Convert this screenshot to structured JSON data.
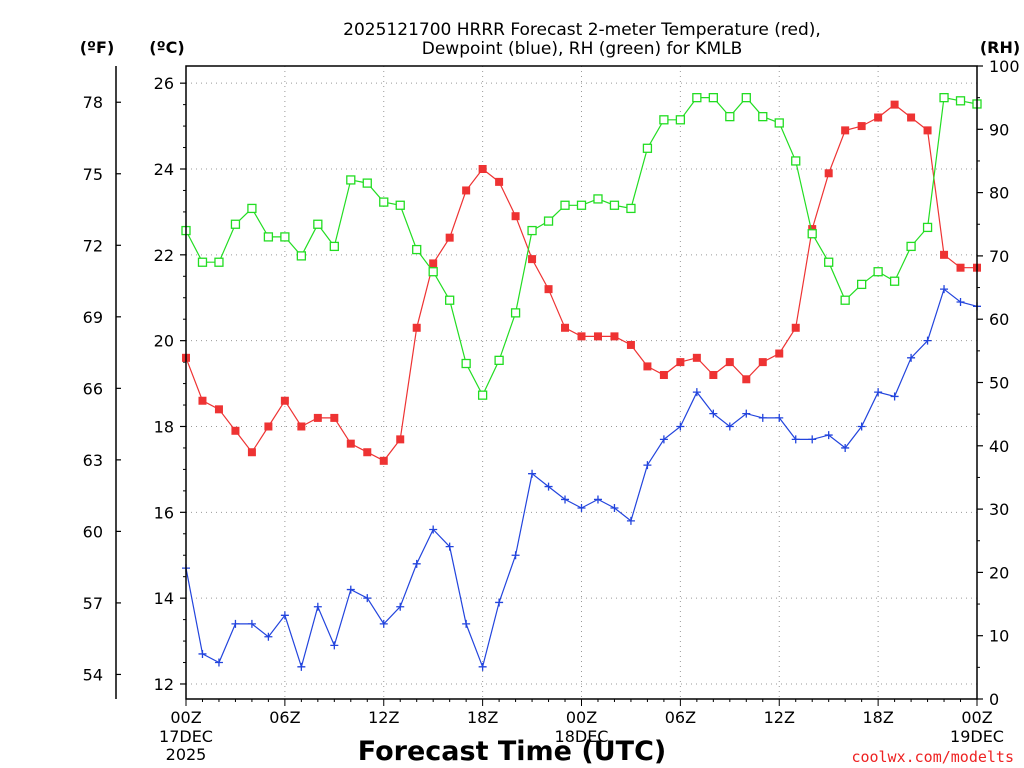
{
  "chart_data": {
    "type": "line",
    "title_line1": "2025121700 HRRR Forecast 2-meter Temperature (red),",
    "title_line2": "Dewpoint (blue), RH (green) for KMLB",
    "xlabel": "Forecast Time (UTC)",
    "credit": "coolwx.com/modelts",
    "unit_f": "(ºF)",
    "unit_c": "(ºC)",
    "unit_rh": "(RH)",
    "x": [
      0,
      1,
      2,
      3,
      4,
      5,
      6,
      7,
      8,
      9,
      10,
      11,
      12,
      13,
      14,
      15,
      16,
      17,
      18,
      19,
      20,
      21,
      22,
      23,
      24,
      25,
      26,
      27,
      28,
      29,
      30,
      31,
      32,
      33,
      34,
      35,
      36,
      37,
      38,
      39,
      40,
      41,
      42,
      43,
      44,
      45,
      46,
      47,
      48
    ],
    "xlim": [
      0,
      48
    ],
    "x_ticks": [
      {
        "x": 0,
        "label": "00Z",
        "sub1": "17DEC",
        "sub2": "2025"
      },
      {
        "x": 6,
        "label": "06Z",
        "sub1": "",
        "sub2": ""
      },
      {
        "x": 12,
        "label": "12Z",
        "sub1": "",
        "sub2": ""
      },
      {
        "x": 18,
        "label": "18Z",
        "sub1": "",
        "sub2": ""
      },
      {
        "x": 24,
        "label": "00Z",
        "sub1": "18DEC",
        "sub2": ""
      },
      {
        "x": 30,
        "label": "06Z",
        "sub1": "",
        "sub2": ""
      },
      {
        "x": 36,
        "label": "12Z",
        "sub1": "",
        "sub2": ""
      },
      {
        "x": 42,
        "label": "18Z",
        "sub1": "",
        "sub2": ""
      },
      {
        "x": 48,
        "label": "00Z",
        "sub1": "19DEC",
        "sub2": ""
      }
    ],
    "ylim_c": [
      11.65,
      26.4
    ],
    "yticks_c": [
      "12",
      "14",
      "16",
      "18",
      "20",
      "22",
      "24",
      "26"
    ],
    "yticks_f": [
      "54",
      "57",
      "60",
      "63",
      "66",
      "69",
      "72",
      "75",
      "78"
    ],
    "ylim_rh": [
      0,
      100
    ],
    "yticks_rh": [
      "0",
      "10",
      "20",
      "30",
      "40",
      "50",
      "60",
      "70",
      "80",
      "90",
      "100"
    ],
    "grid": true,
    "series": [
      {
        "name": "Temperature (red)",
        "axis": "c",
        "color": "#ee3333",
        "marker": "filled-square",
        "values": [
          19.6,
          18.6,
          18.4,
          17.9,
          17.4,
          18.0,
          18.6,
          18.0,
          18.2,
          18.2,
          17.6,
          17.4,
          17.2,
          17.7,
          20.3,
          21.8,
          22.4,
          23.5,
          24.0,
          23.7,
          22.9,
          21.9,
          21.2,
          20.3,
          20.1,
          20.1,
          20.1,
          19.9,
          19.4,
          19.2,
          19.5,
          19.6,
          19.2,
          19.5,
          19.1,
          19.5,
          19.7,
          20.3,
          22.6,
          23.9,
          24.9,
          25.0,
          25.2,
          25.5,
          25.2,
          24.9,
          22.0,
          21.7,
          21.7
        ]
      },
      {
        "name": "Dewpoint (blue)",
        "axis": "c",
        "color": "#2244dd",
        "marker": "plus",
        "values": [
          14.7,
          12.7,
          12.5,
          13.4,
          13.4,
          13.1,
          13.6,
          12.4,
          13.8,
          12.9,
          14.2,
          14.0,
          13.4,
          13.8,
          14.8,
          15.6,
          15.2,
          13.4,
          12.4,
          13.9,
          15.0,
          16.9,
          16.6,
          16.3,
          16.1,
          16.3,
          16.1,
          15.8,
          17.1,
          17.7,
          18.0,
          18.8,
          18.3,
          18.0,
          18.3,
          18.2,
          18.2,
          17.7,
          17.7,
          17.8,
          17.5,
          18.0,
          18.8,
          18.7,
          19.6,
          20.0,
          21.2,
          20.9,
          20.8
        ]
      },
      {
        "name": "RH (green)",
        "axis": "rh",
        "color": "#22dd22",
        "marker": "open-square",
        "values": [
          74,
          69,
          69,
          75,
          77.5,
          73,
          73,
          70,
          75,
          71.5,
          82,
          81.5,
          78.5,
          78,
          71,
          67.5,
          63,
          53,
          48,
          53.5,
          61,
          74,
          75.5,
          78,
          78,
          79,
          78,
          77.5,
          87,
          91.5,
          91.5,
          95,
          95,
          92,
          95,
          92,
          91,
          85,
          73.5,
          69,
          63,
          65.5,
          67.5,
          66,
          71.5,
          74.5,
          95,
          94.5,
          94
        ]
      }
    ]
  }
}
